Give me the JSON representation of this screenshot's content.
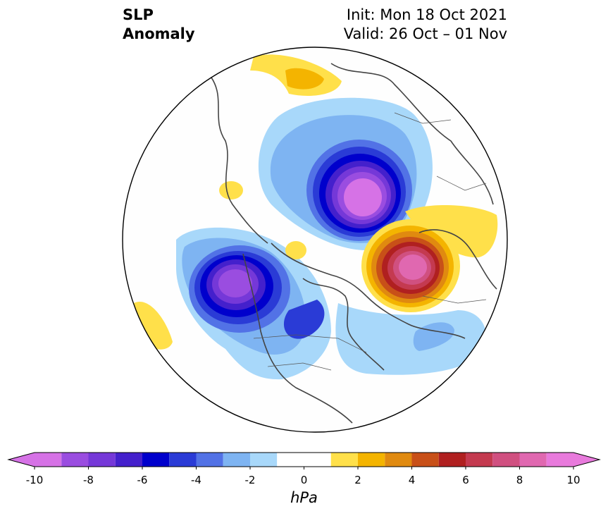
{
  "title": {
    "left_line1": "SLP",
    "left_line2": "Anomaly",
    "right_line1": "Init: Mon 18 Oct 2021",
    "right_line2": "Valid: 26 Oct – 01 Nov"
  },
  "colorbar": {
    "unit": "hPa",
    "ticks": [
      "-10",
      "-8",
      "-6",
      "-4",
      "-2",
      "0",
      "2",
      "4",
      "6",
      "8",
      "10"
    ],
    "bounds": [
      -10,
      -9,
      -8,
      -7,
      -6,
      -5,
      -4,
      -3,
      -2,
      -1,
      1,
      2,
      3,
      4,
      5,
      6,
      7,
      8,
      9,
      10
    ],
    "colors": [
      "#d672e6",
      "#9a4de0",
      "#7538d8",
      "#4420cc",
      "#0000cc",
      "#2a3bd6",
      "#5272e6",
      "#7eb4f2",
      "#a8d8fa",
      "#ffffff",
      "#ffe04a",
      "#f4b400",
      "#e08a10",
      "#c85018",
      "#b02020",
      "#c43a50",
      "#d05080",
      "#e068b0",
      "#e87adc"
    ],
    "extend_low_color": "#d672e6",
    "extend_high_color": "#e87adc"
  }
}
